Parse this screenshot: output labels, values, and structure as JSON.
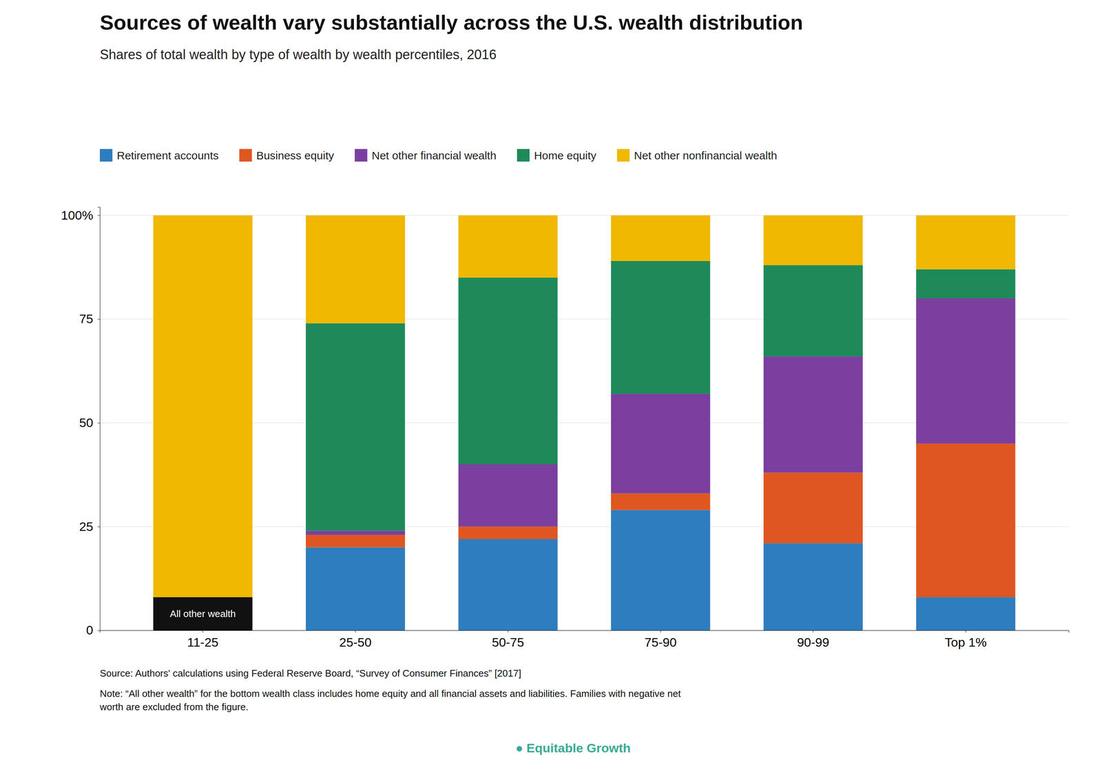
{
  "chart_data": {
    "type": "bar",
    "stacked": true,
    "title": "Sources of wealth vary substantially across the U.S. wealth distribution",
    "subtitle": "Shares of total wealth by type of wealth by wealth percentiles, 2016",
    "categories": [
      "11-25",
      "25-50",
      "50-75",
      "75-90",
      "90-99",
      "Top 1%"
    ],
    "series": [
      {
        "color": "#111111",
        "values": [
          8,
          0,
          0,
          0,
          0,
          0
        ]
      },
      {
        "name": "Retirement accounts",
        "color": "#2e7dbe",
        "values": [
          0,
          20,
          22,
          29,
          21,
          8
        ]
      },
      {
        "name": "Business equity",
        "color": "#e05620",
        "values": [
          0,
          3,
          3,
          4,
          17,
          37
        ]
      },
      {
        "name": "Net other financial wealth",
        "color": "#7b3fa0",
        "values": [
          0,
          1,
          15,
          24,
          28,
          35
        ]
      },
      {
        "name": "Home equity",
        "color": "#1e8a5a",
        "values": [
          0,
          50,
          45,
          32,
          22,
          7
        ]
      },
      {
        "name": "Net other nonfinancial wealth",
        "color": "#f0b800",
        "values": [
          92,
          26,
          15,
          11,
          12,
          13
        ]
      }
    ],
    "annotations": [
      {
        "text": "All other wealth",
        "x": "11-25",
        "y": 4
      }
    ],
    "ylim": [
      0,
      102
    ],
    "yticks": [
      0,
      25,
      50,
      75,
      {
        "value": 100,
        "label": "100%"
      }
    ],
    "grid": true,
    "legend": "top",
    "source": "Source: Authors' calculations using Federal Reserve Board, “Survey of Consumer Finances” [2017]",
    "note": "Note: “All other wealth” for the bottom wealth class includes home equity and all financial assets and liabilities. Families with negative net\nworth are excluded from the figure.",
    "credit": "●  Equitable Growth"
  }
}
